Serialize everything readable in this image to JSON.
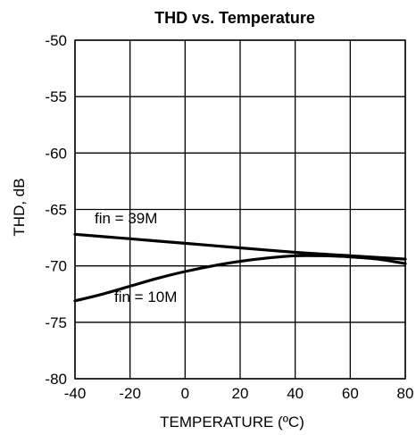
{
  "chart_data": {
    "type": "line",
    "title": "THD vs. Temperature",
    "xlabel": "TEMPERATURE (ºC)",
    "ylabel": "THD, dB",
    "xlim": [
      -40,
      80
    ],
    "ylim": [
      -80,
      -50
    ],
    "xticks": [
      -40,
      -20,
      0,
      20,
      40,
      60,
      80
    ],
    "yticks": [
      -80,
      -75,
      -70,
      -65,
      -60,
      -55,
      -50
    ],
    "grid": true,
    "series": [
      {
        "name": "fin = 39M",
        "x": [
          -40,
          -20,
          0,
          20,
          40,
          60,
          80
        ],
        "y": [
          -67.2,
          -67.6,
          -68.0,
          -68.4,
          -68.8,
          -69.1,
          -69.4
        ]
      },
      {
        "name": "fin = 10M",
        "x": [
          -40,
          -30,
          -20,
          -10,
          0,
          10,
          20,
          30,
          40,
          50,
          60,
          70,
          80
        ],
        "y": [
          -73.1,
          -72.5,
          -71.8,
          -71.1,
          -70.5,
          -70.0,
          -69.6,
          -69.3,
          -69.1,
          -69.1,
          -69.2,
          -69.4,
          -69.8
        ]
      }
    ],
    "annotations": [
      "fin = 39M",
      "fin = 10M"
    ]
  }
}
